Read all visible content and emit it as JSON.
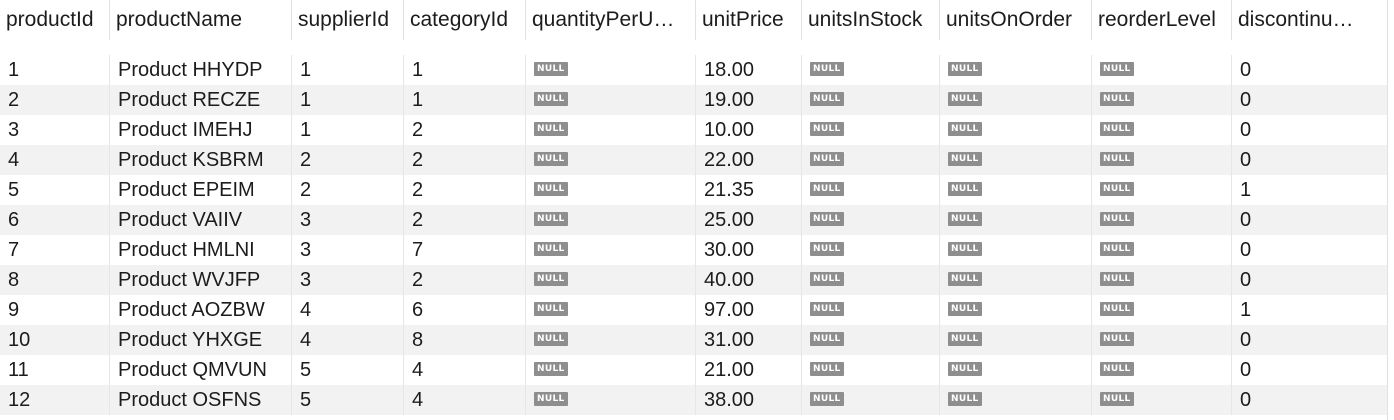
{
  "columns": [
    {
      "key": "productId",
      "label": "productId"
    },
    {
      "key": "productName",
      "label": "productName"
    },
    {
      "key": "supplierId",
      "label": "supplierId"
    },
    {
      "key": "categoryId",
      "label": "categoryId"
    },
    {
      "key": "quantityPerUnit",
      "label": "quantityPerU…"
    },
    {
      "key": "unitPrice",
      "label": "unitPrice"
    },
    {
      "key": "unitsInStock",
      "label": "unitsInStock"
    },
    {
      "key": "unitsOnOrder",
      "label": "unitsOnOrder"
    },
    {
      "key": "reorderLevel",
      "label": "reorderLevel"
    },
    {
      "key": "discontinued",
      "label": "discontinu…"
    }
  ],
  "null_label": "NULL",
  "rows": [
    {
      "productId": "1",
      "productName": "Product HHYDP",
      "supplierId": "1",
      "categoryId": "1",
      "quantityPerUnit": null,
      "unitPrice": "18.00",
      "unitsInStock": null,
      "unitsOnOrder": null,
      "reorderLevel": null,
      "discontinued": "0"
    },
    {
      "productId": "2",
      "productName": "Product RECZE",
      "supplierId": "1",
      "categoryId": "1",
      "quantityPerUnit": null,
      "unitPrice": "19.00",
      "unitsInStock": null,
      "unitsOnOrder": null,
      "reorderLevel": null,
      "discontinued": "0"
    },
    {
      "productId": "3",
      "productName": "Product IMEHJ",
      "supplierId": "1",
      "categoryId": "2",
      "quantityPerUnit": null,
      "unitPrice": "10.00",
      "unitsInStock": null,
      "unitsOnOrder": null,
      "reorderLevel": null,
      "discontinued": "0"
    },
    {
      "productId": "4",
      "productName": "Product KSBRM",
      "supplierId": "2",
      "categoryId": "2",
      "quantityPerUnit": null,
      "unitPrice": "22.00",
      "unitsInStock": null,
      "unitsOnOrder": null,
      "reorderLevel": null,
      "discontinued": "0"
    },
    {
      "productId": "5",
      "productName": "Product EPEIM",
      "supplierId": "2",
      "categoryId": "2",
      "quantityPerUnit": null,
      "unitPrice": "21.35",
      "unitsInStock": null,
      "unitsOnOrder": null,
      "reorderLevel": null,
      "discontinued": "1"
    },
    {
      "productId": "6",
      "productName": "Product VAIIV",
      "supplierId": "3",
      "categoryId": "2",
      "quantityPerUnit": null,
      "unitPrice": "25.00",
      "unitsInStock": null,
      "unitsOnOrder": null,
      "reorderLevel": null,
      "discontinued": "0"
    },
    {
      "productId": "7",
      "productName": "Product HMLNI",
      "supplierId": "3",
      "categoryId": "7",
      "quantityPerUnit": null,
      "unitPrice": "30.00",
      "unitsInStock": null,
      "unitsOnOrder": null,
      "reorderLevel": null,
      "discontinued": "0"
    },
    {
      "productId": "8",
      "productName": "Product WVJFP",
      "supplierId": "3",
      "categoryId": "2",
      "quantityPerUnit": null,
      "unitPrice": "40.00",
      "unitsInStock": null,
      "unitsOnOrder": null,
      "reorderLevel": null,
      "discontinued": "0"
    },
    {
      "productId": "9",
      "productName": "Product AOZBW",
      "supplierId": "4",
      "categoryId": "6",
      "quantityPerUnit": null,
      "unitPrice": "97.00",
      "unitsInStock": null,
      "unitsOnOrder": null,
      "reorderLevel": null,
      "discontinued": "1"
    },
    {
      "productId": "10",
      "productName": "Product YHXGE",
      "supplierId": "4",
      "categoryId": "8",
      "quantityPerUnit": null,
      "unitPrice": "31.00",
      "unitsInStock": null,
      "unitsOnOrder": null,
      "reorderLevel": null,
      "discontinued": "0"
    },
    {
      "productId": "11",
      "productName": "Product QMVUN",
      "supplierId": "5",
      "categoryId": "4",
      "quantityPerUnit": null,
      "unitPrice": "21.00",
      "unitsInStock": null,
      "unitsOnOrder": null,
      "reorderLevel": null,
      "discontinued": "0"
    },
    {
      "productId": "12",
      "productName": "Product OSFNS",
      "supplierId": "5",
      "categoryId": "4",
      "quantityPerUnit": null,
      "unitPrice": "38.00",
      "unitsInStock": null,
      "unitsOnOrder": null,
      "reorderLevel": null,
      "discontinued": "0"
    }
  ]
}
